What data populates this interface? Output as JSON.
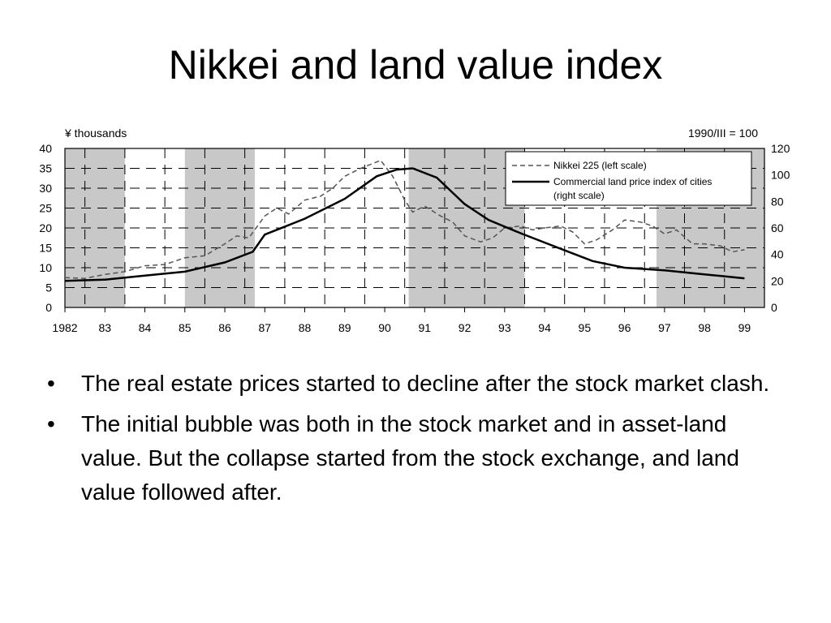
{
  "slide": {
    "title": "Nikkei and land value index",
    "bullets": [
      "The real estate prices started to decline after the stock market clash.",
      "The initial bubble was both in the stock market and in asset-land value. But the collapse started from the stock exchange, and land value followed after."
    ]
  },
  "chart_data": {
    "type": "line",
    "left_axis_label": "¥ thousands",
    "right_axis_label": "1990/III = 100",
    "left_ylim": [
      0,
      40
    ],
    "left_ticks": [
      0,
      5,
      10,
      15,
      20,
      25,
      30,
      35,
      40
    ],
    "right_ylim": [
      0,
      120
    ],
    "right_ticks": [
      0,
      20,
      40,
      60,
      80,
      100,
      120
    ],
    "xlim": [
      1982,
      1999.5
    ],
    "x_ticks": [
      1982,
      1983,
      1984,
      1985,
      1986,
      1987,
      1988,
      1989,
      1990,
      1991,
      1992,
      1993,
      1994,
      1995,
      1996,
      1997,
      1998,
      1999
    ],
    "x_tick_labels": [
      "1982",
      "83",
      "84",
      "85",
      "86",
      "87",
      "88",
      "89",
      "90",
      "91",
      "92",
      "93",
      "94",
      "95",
      "96",
      "97",
      "98",
      "99"
    ],
    "grid": true,
    "legend_position": "top-right",
    "shaded_periods": [
      [
        1982,
        1983.5
      ],
      [
        1985,
        1986.75
      ],
      [
        1990.6,
        1993.5
      ],
      [
        1996.8,
        1999.5
      ]
    ],
    "series": [
      {
        "name": "Nikkei 225 (left scale)",
        "axis": "left",
        "style": "dashed",
        "points": [
          [
            1982,
            7.5
          ],
          [
            1982.5,
            7.3
          ],
          [
            1983,
            8.3
          ],
          [
            1983.5,
            9
          ],
          [
            1984,
            10.5
          ],
          [
            1984.5,
            10.8
          ],
          [
            1985,
            12.5
          ],
          [
            1985.5,
            13
          ],
          [
            1986,
            16
          ],
          [
            1986.3,
            18
          ],
          [
            1986.6,
            17.5
          ],
          [
            1987,
            23
          ],
          [
            1987.3,
            25
          ],
          [
            1987.6,
            23.5
          ],
          [
            1988,
            27
          ],
          [
            1988.4,
            28
          ],
          [
            1988.7,
            30
          ],
          [
            1989,
            33
          ],
          [
            1989.4,
            35
          ],
          [
            1989.9,
            37
          ],
          [
            1990.2,
            33
          ],
          [
            1990.5,
            27
          ],
          [
            1990.7,
            24
          ],
          [
            1991,
            25.5
          ],
          [
            1991.4,
            23
          ],
          [
            1991.7,
            21.5
          ],
          [
            1992,
            18
          ],
          [
            1992.4,
            16.5
          ],
          [
            1992.7,
            17.5
          ],
          [
            1993,
            20
          ],
          [
            1993.4,
            20.5
          ],
          [
            1993.7,
            19.5
          ],
          [
            1994,
            20
          ],
          [
            1994.4,
            20.5
          ],
          [
            1994.7,
            19
          ],
          [
            1995,
            16
          ],
          [
            1995.3,
            17
          ],
          [
            1995.7,
            19.5
          ],
          [
            1996,
            22
          ],
          [
            1996.4,
            21.5
          ],
          [
            1996.7,
            20.5
          ],
          [
            1997,
            18.5
          ],
          [
            1997.3,
            19.5
          ],
          [
            1997.7,
            16
          ],
          [
            1998,
            16
          ],
          [
            1998.4,
            15.5
          ],
          [
            1998.7,
            14
          ],
          [
            1999,
            14.5
          ]
        ]
      },
      {
        "name": "Commercial land price index of cities (right scale)",
        "axis": "right",
        "style": "solid",
        "points": [
          [
            1982,
            20
          ],
          [
            1983,
            21
          ],
          [
            1984,
            24
          ],
          [
            1985,
            27
          ],
          [
            1986,
            34
          ],
          [
            1986.7,
            42
          ],
          [
            1987,
            55
          ],
          [
            1988,
            67
          ],
          [
            1989,
            82
          ],
          [
            1989.8,
            99
          ],
          [
            1990.3,
            104
          ],
          [
            1990.7,
            105
          ],
          [
            1991.3,
            98
          ],
          [
            1992,
            78
          ],
          [
            1992.6,
            66
          ],
          [
            1993.4,
            56
          ],
          [
            1994,
            49
          ],
          [
            1994.6,
            42
          ],
          [
            1995.2,
            35
          ],
          [
            1996,
            30
          ],
          [
            1997,
            28
          ],
          [
            1998,
            25
          ],
          [
            1999,
            22
          ]
        ]
      }
    ]
  }
}
